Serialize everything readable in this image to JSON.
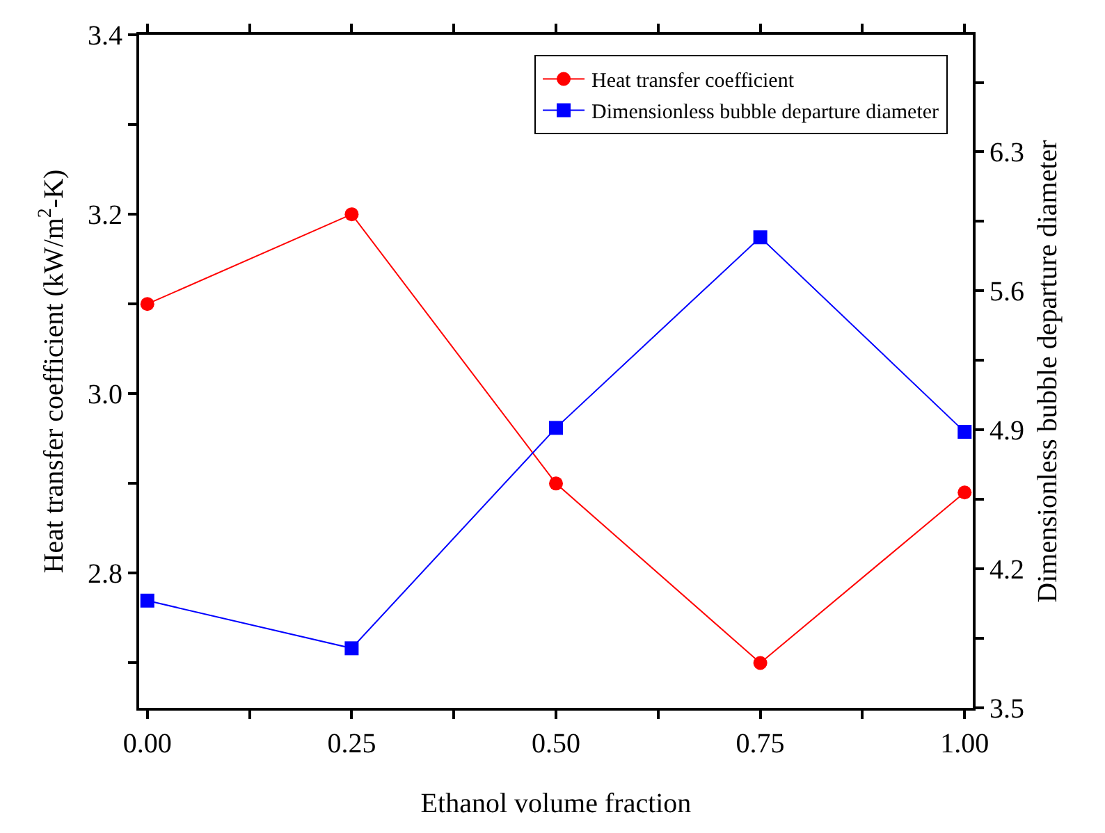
{
  "chart_data": {
    "type": "line",
    "xlabel": "Ethanol volume fraction",
    "ylabel": "Heat transfer coefficient (kW/m$^{2}$-K)",
    "y2label": "Dimensionless bubble departure diameter",
    "x": [
      0,
      0.25,
      0.5,
      0.75,
      1.0
    ],
    "series": [
      {
        "name": "Heat transfer coefficient",
        "color": "#ff0000",
        "marker": "circle",
        "values": [
          3.1,
          3.2,
          2.9,
          2.7,
          2.89
        ]
      },
      {
        "name": "Dimensionless bubble departure diameter",
        "color": "#0000ff",
        "marker": "square",
        "axis": "y2",
        "values": [
          4.04,
          3.8,
          4.91,
          5.87,
          4.89
        ]
      }
    ],
    "xlim": [
      -0.01,
      1.01
    ],
    "xticks": [
      {
        "value": 0,
        "label": "0.00"
      },
      {
        "value": 0.125,
        "label": null
      },
      {
        "value": 0.25,
        "label": "0.25"
      },
      {
        "value": 0.375,
        "label": null
      },
      {
        "value": 0.5,
        "label": "0.50"
      },
      {
        "value": 0.625,
        "label": null
      },
      {
        "value": 0.75,
        "label": "0.75"
      },
      {
        "value": 0.875,
        "label": null
      },
      {
        "value": 1,
        "label": "1.00"
      }
    ],
    "ylim": [
      2.65,
      3.4
    ],
    "yticks": [
      {
        "value": 2.7,
        "label": null
      },
      2.8,
      {
        "value": 2.9,
        "label": null
      },
      {
        "value": 3.0,
        "label": "3.0"
      },
      {
        "value": 3.1,
        "label": null
      },
      3.2,
      {
        "value": 3.3,
        "label": null
      },
      3.4
    ],
    "y2lim": [
      3.5,
      6.89
    ],
    "y2ticks": [
      3.5,
      {
        "value": 3.85,
        "label": null
      },
      4.2,
      {
        "value": 4.55,
        "label": null
      },
      4.9,
      {
        "value": 5.25,
        "label": null
      },
      5.6,
      {
        "value": 5.95,
        "label": null
      },
      6.3,
      {
        "value": 6.65,
        "label": null
      }
    ],
    "grid": false,
    "legend": "top right",
    "line_style": "solid"
  }
}
